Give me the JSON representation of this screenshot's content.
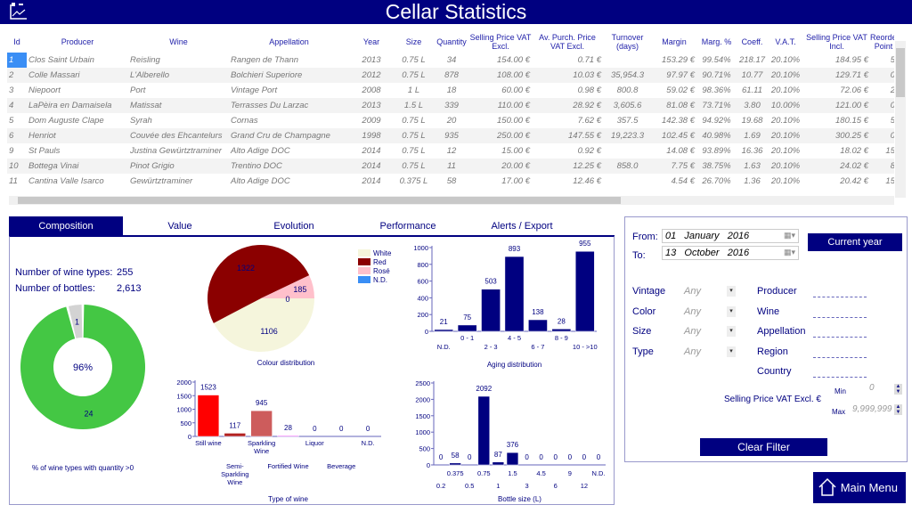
{
  "header": {
    "title": "Cellar Statistics",
    "icon": "chart-icon"
  },
  "table": {
    "columns": [
      "Id",
      "Producer",
      "Wine",
      "Appellation",
      "Year",
      "Size",
      "Quantity",
      "Selling Price VAT Excl.",
      "Av. Purch. Price VAT Excl.",
      "Turnover (days)",
      "Margin",
      "Marg. %",
      "Coeff.",
      "V.A.T.",
      "Selling Price VAT Incl.",
      "Reorder Point"
    ],
    "rows": [
      [
        "1",
        "Clos Saint Urbain",
        "Reisling",
        "Rangen de Thann",
        "2013",
        "0.75 L",
        "34",
        "154.00 €",
        "0.71 €",
        "",
        "153.29 €",
        "99.54%",
        "218.17",
        "20.10%",
        "184.95 €",
        "5"
      ],
      [
        "2",
        "Colle Massari",
        "L'Alberello",
        "Bolchieri Superiore",
        "2012",
        "0.75 L",
        "878",
        "108.00 €",
        "10.03 €",
        "35,954.3",
        "97.97 €",
        "90.71%",
        "10.77",
        "20.10%",
        "129.71 €",
        "0"
      ],
      [
        "3",
        "Niepoort",
        "Port",
        "Vintage Port",
        "2008",
        "1 L",
        "18",
        "60.00 €",
        "0.98 €",
        "800.8",
        "59.02 €",
        "98.36%",
        "61.11",
        "20.10%",
        "72.06 €",
        "2"
      ],
      [
        "4",
        "LaPèira en Damaisela",
        "Matissat",
        "Terrasses Du Larzac",
        "2013",
        "1.5 L",
        "339",
        "110.00 €",
        "28.92 €",
        "3,605.6",
        "81.08 €",
        "73.71%",
        "3.80",
        "10.00%",
        "121.00 €",
        "0"
      ],
      [
        "5",
        "Dom Auguste Clape",
        "Syrah",
        "Cornas",
        "2009",
        "0.75 L",
        "20",
        "150.00 €",
        "7.62 €",
        "357.5",
        "142.38 €",
        "94.92%",
        "19.68",
        "20.10%",
        "180.15 €",
        "5"
      ],
      [
        "6",
        "Henriot",
        "Couvée des Ehcantelurs",
        "Grand Cru de Champagne",
        "1998",
        "0.75 L",
        "935",
        "250.00 €",
        "147.55 €",
        "19,223.3",
        "102.45 €",
        "40.98%",
        "1.69",
        "20.10%",
        "300.25 €",
        "0"
      ],
      [
        "9",
        "St Pauls",
        "Justina Gewürtztraminer",
        "Alto Adige DOC",
        "2014",
        "0.75 L",
        "12",
        "15.00 €",
        "0.92 €",
        "",
        "14.08 €",
        "93.89%",
        "16.36",
        "20.10%",
        "18.02 €",
        "15"
      ],
      [
        "10",
        "Bottega Vinai",
        "Pinot Grigio",
        "Trentino DOC",
        "2014",
        "0.75 L",
        "11",
        "20.00 €",
        "12.25 €",
        "858.0",
        "7.75 €",
        "38.75%",
        "1.63",
        "20.10%",
        "24.02 €",
        "8"
      ],
      [
        "11",
        "Cantina Valle Isarco",
        "Gewürtztraminer",
        "Alto Adige DOC",
        "2014",
        "0.375 L",
        "58",
        "17.00 €",
        "12.46 €",
        "",
        "4.54 €",
        "26.70%",
        "1.36",
        "20.10%",
        "20.42 €",
        "15"
      ]
    ]
  },
  "tabs": [
    "Composition",
    "Value",
    "Evolution",
    "Performance",
    "Alerts / Export"
  ],
  "active_tab": "Composition",
  "composition": {
    "wine_types_label": "Number of wine types:",
    "wine_types": "255",
    "bottles_label": "Number of bottles:",
    "bottles": "2,613"
  },
  "chart_data": [
    {
      "type": "pie",
      "variant": "donut",
      "title": "% of wine types with quantity >0",
      "center_label": "96%",
      "slices": [
        {
          "label": "24",
          "value": 24,
          "color": "#44c744"
        },
        {
          "label": "1",
          "value": 1,
          "color": "#d3d3d3"
        }
      ]
    },
    {
      "type": "pie",
      "title": "Colour distribution",
      "legend": "right",
      "slices": [
        {
          "name": "White",
          "value": 1106,
          "color": "#f5f5dc"
        },
        {
          "name": "Red",
          "value": 1322,
          "color": "#8b0000"
        },
        {
          "name": "Rosé",
          "value": 185,
          "color": "#ffc0cb"
        },
        {
          "name": "N.D.",
          "value": 0,
          "color": "#3a8ef5"
        }
      ]
    },
    {
      "type": "bar",
      "title": "Aging distribution",
      "categories": [
        "N.D.",
        "0 - 1",
        "2 - 3",
        "4 - 5",
        "6 - 7",
        "8 - 9",
        "10 - >10"
      ],
      "values": [
        21,
        75,
        503,
        893,
        138,
        28,
        955
      ],
      "ylim": [
        0,
        1000
      ],
      "yticks": [
        0,
        200,
        400,
        600,
        800,
        1000
      ],
      "colors": [
        "#000080"
      ]
    },
    {
      "type": "bar",
      "title": "Type of wine",
      "categories": [
        "Still wine",
        "Semi-Sparkling Wine",
        "Sparkling Wine",
        "Fortified Wine",
        "Liquor",
        "Beverage",
        "N.D."
      ],
      "values": [
        1523,
        117,
        945,
        28,
        0,
        0,
        0
      ],
      "ylim": [
        0,
        2000
      ],
      "yticks": [
        0,
        500,
        1000,
        1500,
        2000
      ],
      "colors": [
        "#ff0000",
        "#b22222",
        "#cd5c5c",
        "#ff00ff",
        "#000080",
        "#000080",
        "#000080"
      ]
    },
    {
      "type": "bar",
      "title": "Bottle size (L)",
      "categories": [
        "0.2",
        "0.375",
        "0.5",
        "0.75",
        "1",
        "1.5",
        "3",
        "4.5",
        "6",
        "9",
        "12",
        "N.D."
      ],
      "values": [
        0,
        58,
        0,
        2092,
        87,
        376,
        0,
        0,
        0,
        0,
        0,
        0
      ],
      "ylim": [
        0,
        2500
      ],
      "yticks": [
        0,
        500,
        1000,
        1500,
        2000,
        2500
      ],
      "colors": [
        "#000080"
      ]
    }
  ],
  "filter": {
    "from_label": "From:",
    "from_value": "01   January   2016",
    "to_label": "To:",
    "to_value": "13   October   2016",
    "current_year": "Current year",
    "selects": [
      {
        "label": "Vintage",
        "value": "Any"
      },
      {
        "label": "Color",
        "value": "Any"
      },
      {
        "label": "Size",
        "value": "Any"
      },
      {
        "label": "Type",
        "value": "Any"
      }
    ],
    "text_fields": [
      "Producer",
      "Wine",
      "Appellation",
      "Region",
      "Country"
    ],
    "price_label": "Selling Price VAT Excl. €",
    "min_label": "Min",
    "min_value": "0",
    "max_label": "Max",
    "max_value": "9,999,999",
    "clear": "Clear Filter"
  },
  "main_menu": "Main Menu"
}
